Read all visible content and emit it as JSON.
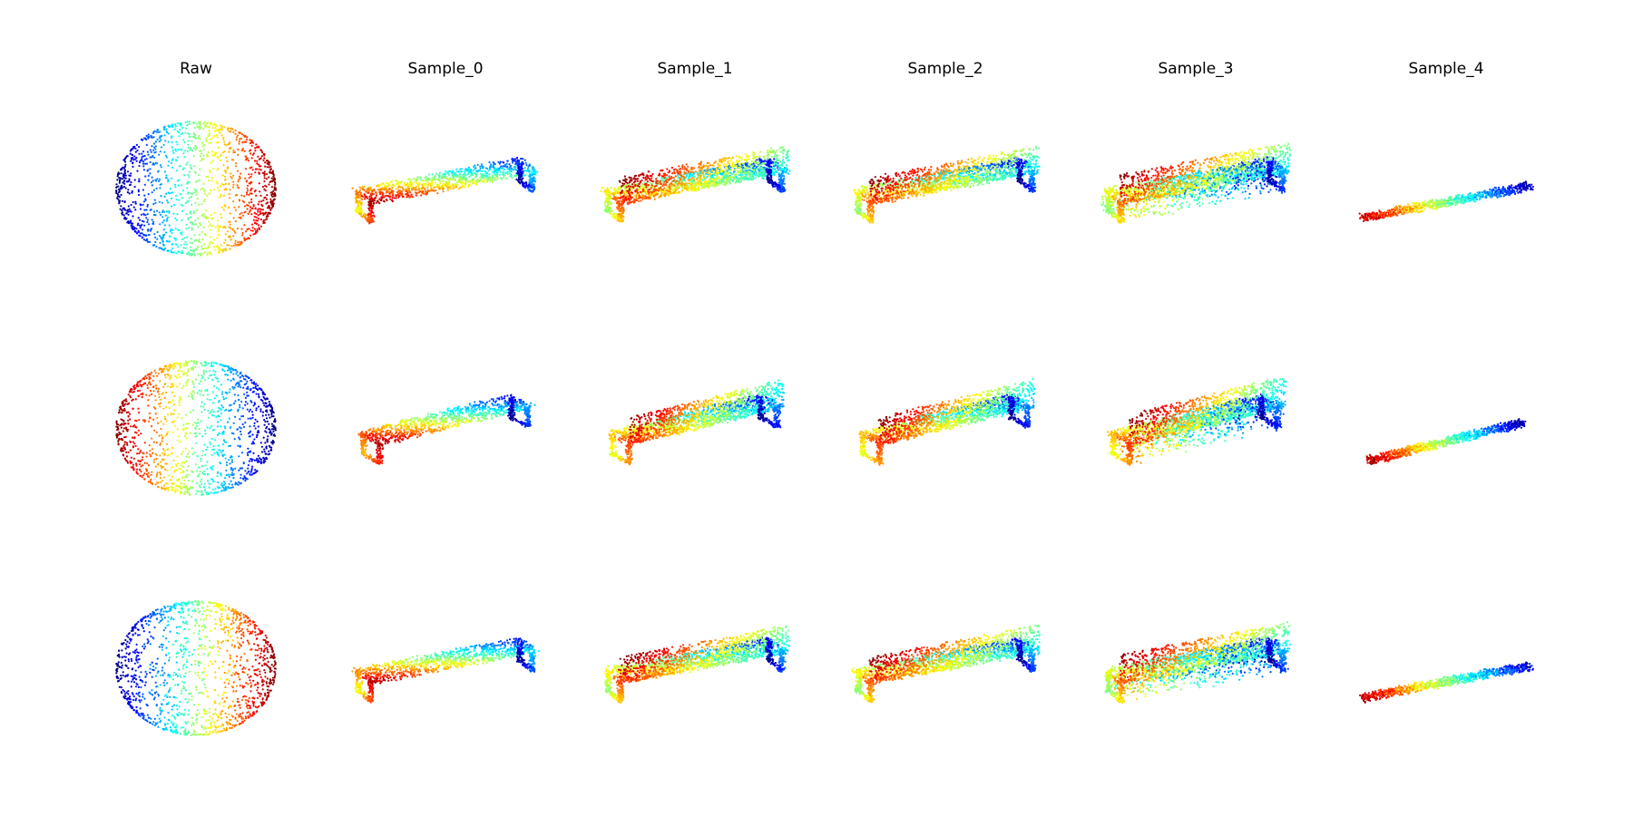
{
  "figure": {
    "columns": [
      {
        "title": "Raw",
        "shape": "sphere"
      },
      {
        "title": "Sample_0",
        "shape": "bench-no-back"
      },
      {
        "title": "Sample_1",
        "shape": "bench-back"
      },
      {
        "title": "Sample_2",
        "shape": "bench-back"
      },
      {
        "title": "Sample_3",
        "shape": "bench-box"
      },
      {
        "title": "Sample_4",
        "shape": "beam"
      }
    ],
    "rows": 3,
    "colormap": [
      "#00007f",
      "#0000ff",
      "#007fff",
      "#00ffff",
      "#7fff7f",
      "#ffff00",
      "#ff7f00",
      "#ff0000",
      "#7f0000"
    ]
  }
}
